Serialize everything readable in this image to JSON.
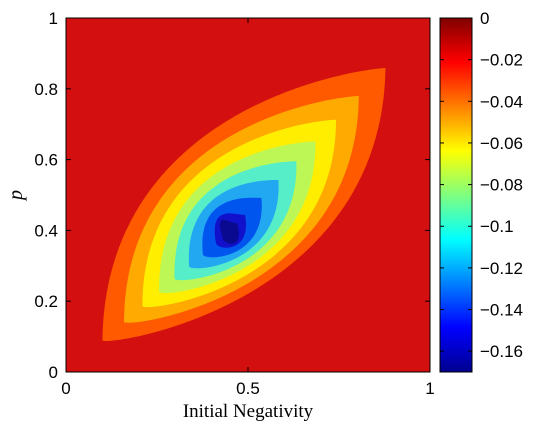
{
  "chart_data": {
    "type": "contour",
    "title": "",
    "xlabel": "Initial Negativity",
    "ylabel": "p",
    "xlim": [
      0,
      1
    ],
    "ylim": [
      0,
      1
    ],
    "x_ticks": [
      {
        "value": 0,
        "label": "0"
      },
      {
        "value": 0.5,
        "label": "0.5"
      },
      {
        "value": 1,
        "label": "1"
      }
    ],
    "y_ticks": [
      {
        "value": 0,
        "label": "0"
      },
      {
        "value": 0.2,
        "label": "0.2"
      },
      {
        "value": 0.4,
        "label": "0.4"
      },
      {
        "value": 0.6,
        "label": "0.6"
      },
      {
        "value": 0.8,
        "label": "0.8"
      },
      {
        "value": 1,
        "label": "1"
      }
    ],
    "colorbar": {
      "colormap": "jet",
      "range": [
        -0.17,
        0
      ],
      "ticks": [
        {
          "value": 0,
          "label": "0"
        },
        {
          "value": -0.02,
          "label": "−0.02"
        },
        {
          "value": -0.04,
          "label": "−0.04"
        },
        {
          "value": -0.06,
          "label": "−0.06"
        },
        {
          "value": -0.08,
          "label": "−0.08"
        },
        {
          "value": -0.1,
          "label": "−0.1"
        },
        {
          "value": -0.12,
          "label": "−0.12"
        },
        {
          "value": -0.14,
          "label": "−0.14"
        },
        {
          "value": -0.16,
          "label": "−0.16"
        }
      ]
    },
    "levels": [
      -0.17,
      -0.16,
      -0.14,
      -0.12,
      -0.1,
      -0.08,
      -0.06,
      -0.04,
      -0.02,
      0
    ],
    "level_colors": [
      "#0a0a90",
      "#1111cc",
      "#0055ee",
      "#22a8f0",
      "#55eec8",
      "#bdf755",
      "#ffee00",
      "#ffaa00",
      "#ff5a00",
      "#d40f0f"
    ],
    "minimum": {
      "x": 0.45,
      "y": 0.4,
      "value": -0.17
    }
  }
}
